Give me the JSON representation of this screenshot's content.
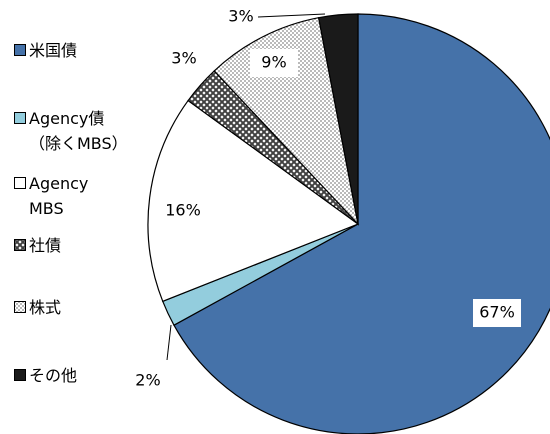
{
  "chart_data": {
    "type": "pie",
    "categories": [
      "米国債",
      "Agency債\n（除くMBS）",
      "Agency\nMBS",
      "社債",
      "株式",
      "その他"
    ],
    "values": [
      67,
      2,
      16,
      3,
      9,
      3
    ],
    "value_labels": [
      "67%",
      "2%",
      "16%",
      "3%",
      "9%",
      "3%"
    ],
    "colors": [
      "#4572a9",
      "#93cddd",
      "#ffffff",
      "#595959",
      "#a6a6a6",
      "#1a1a1a"
    ],
    "patterns": [
      null,
      null,
      null,
      "crosshatch",
      "dots",
      null
    ]
  }
}
